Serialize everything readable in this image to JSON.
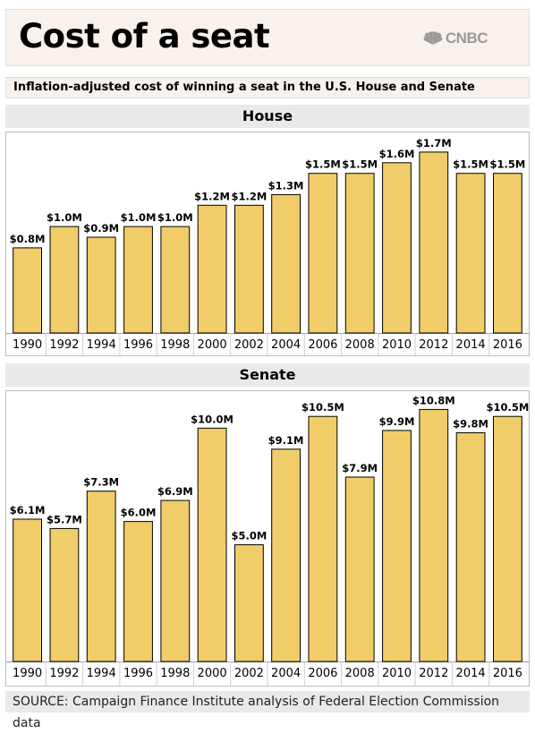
{
  "header": {
    "title": "Cost of a seat",
    "logo_text": "CNBC",
    "logo_icon": "peacock-icon"
  },
  "subtitle": "Inflation-adjusted cost of winning a seat in the U.S. House and Senate",
  "source": "SOURCE: Campaign Finance Institute analysis of Federal Election Commission data",
  "colors": {
    "bar": "#f0cd68",
    "bar_stroke": "#000000",
    "panel": "#f8f1ec",
    "section": "#e9e9e9"
  },
  "chart_data": [
    {
      "type": "bar",
      "title": "House",
      "categories": [
        "1990",
        "1992",
        "1994",
        "1996",
        "1998",
        "2000",
        "2002",
        "2004",
        "2006",
        "2008",
        "2010",
        "2012",
        "2014",
        "2016"
      ],
      "values": [
        0.8,
        1.0,
        0.9,
        1.0,
        1.0,
        1.2,
        1.2,
        1.3,
        1.5,
        1.5,
        1.6,
        1.7,
        1.5,
        1.5
      ],
      "labels": [
        "$0.8M",
        "$1.0M",
        "$0.9M",
        "$1.0M",
        "$1.0M",
        "$1.2M",
        "$1.2M",
        "$1.3M",
        "$1.5M",
        "$1.5M",
        "$1.6M",
        "$1.7M",
        "$1.5M",
        "$1.5M"
      ],
      "unit": "$M",
      "ylim": [
        0,
        1.8
      ],
      "grid": false
    },
    {
      "type": "bar",
      "title": "Senate",
      "categories": [
        "1990",
        "1992",
        "1994",
        "1996",
        "1998",
        "2000",
        "2002",
        "2004",
        "2006",
        "2008",
        "2010",
        "2012",
        "2014",
        "2016"
      ],
      "values": [
        6.1,
        5.7,
        7.3,
        6.0,
        6.9,
        10.0,
        5.0,
        9.1,
        10.5,
        7.9,
        9.9,
        10.8,
        9.8,
        10.5
      ],
      "labels": [
        "$6.1M",
        "$5.7M",
        "$7.3M",
        "$6.0M",
        "$6.9M",
        "$10.0M",
        "$5.0M",
        "$9.1M",
        "$10.5M",
        "$7.9M",
        "$9.9M",
        "$10.8M",
        "$9.8M",
        "$10.5M"
      ],
      "unit": "$M",
      "ylim": [
        0,
        11.2
      ],
      "grid": false
    }
  ]
}
